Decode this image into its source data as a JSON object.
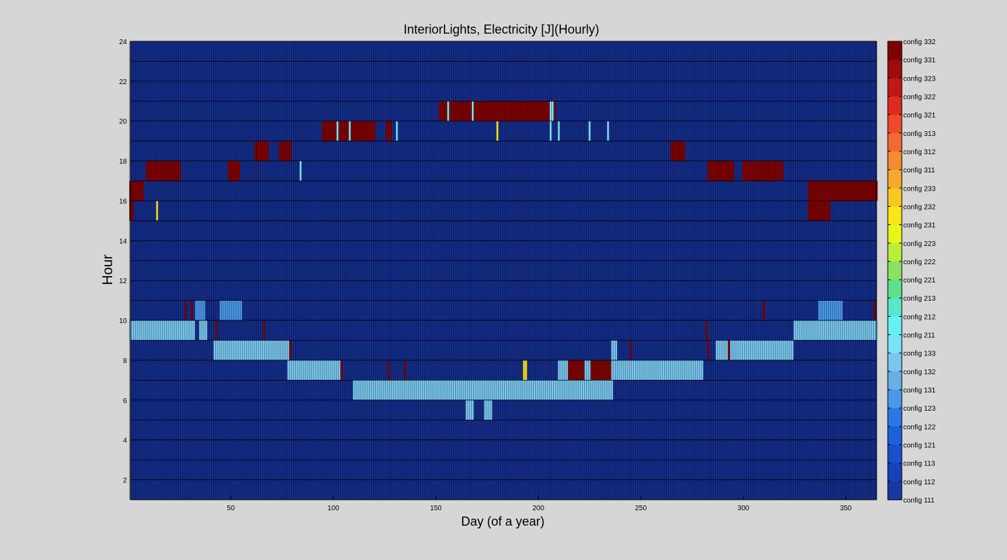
{
  "chart_data": {
    "type": "heatmap",
    "title": "InteriorLights, Electricity [J](Hourly)",
    "xlabel": "Day (of a year)",
    "ylabel": "Hour",
    "xlim": [
      1,
      365
    ],
    "ylim": [
      1,
      24
    ],
    "xticks": [
      50,
      100,
      150,
      200,
      250,
      300,
      350
    ],
    "yticks": [
      2,
      4,
      6,
      8,
      10,
      12,
      14,
      16,
      18,
      20,
      22,
      24
    ],
    "grid": true,
    "colorbar": {
      "position": "right",
      "labels": [
        "config 332",
        "config 331",
        "config 323",
        "config 322",
        "config 321",
        "config 313",
        "config 312",
        "config 311",
        "config 233",
        "config 232",
        "config 231",
        "config 223",
        "config 222",
        "config 221",
        "config 213",
        "config 212",
        "config 211",
        "config 133",
        "config 132",
        "config 131",
        "config 123",
        "config 122",
        "config 121",
        "config 113",
        "config 112",
        "config 111"
      ],
      "colors": [
        "#7f0000",
        "#a00a0a",
        "#c01818",
        "#dd2a20",
        "#ef4a2a",
        "#f26a30",
        "#f48a32",
        "#f7a830",
        "#f9c820",
        "#f8e818",
        "#e6f51a",
        "#b8ee3a",
        "#88e460",
        "#5ee08c",
        "#56e8c8",
        "#66f2f2",
        "#7be2f8",
        "#79c6ee",
        "#6aaee6",
        "#4a98e8",
        "#2a78e8",
        "#1e60dc",
        "#1a4fcc",
        "#1840b8",
        "#1838a6",
        "#142d8a"
      ]
    },
    "background_level": "config 111",
    "bands": [
      {
        "hour": 21,
        "level": "config 332",
        "day_ranges": [
          [
            152,
            205
          ]
        ],
        "spot_days": [
          [
            156,
            "config 211"
          ],
          [
            168,
            "config 211"
          ],
          [
            206,
            "config 211"
          ],
          [
            207,
            "config 211"
          ],
          [
            208,
            "config 332"
          ]
        ]
      },
      {
        "hour": 20,
        "level": "config 332",
        "day_ranges": [
          [
            95,
            120
          ],
          [
            126,
            128
          ]
        ],
        "spot_days": [
          [
            102,
            "config 211"
          ],
          [
            108,
            "config 211"
          ],
          [
            131,
            "config 211"
          ],
          [
            180,
            "config 232"
          ],
          [
            206,
            "config 211"
          ],
          [
            210,
            "config 211"
          ],
          [
            225,
            "config 211"
          ],
          [
            234,
            "config 211"
          ]
        ]
      },
      {
        "hour": 19,
        "level": "config 332",
        "day_ranges": [
          [
            62,
            68
          ],
          [
            74,
            79
          ],
          [
            265,
            271
          ]
        ],
        "spot_days": []
      },
      {
        "hour": 18,
        "level": "config 332",
        "day_ranges": [
          [
            9,
            25
          ],
          [
            49,
            54
          ],
          [
            283,
            295
          ],
          [
            300,
            319
          ]
        ],
        "spot_days": [
          [
            84,
            "config 211"
          ]
        ]
      },
      {
        "hour": 17,
        "level": "config 332",
        "day_ranges": [
          [
            1,
            7
          ],
          [
            332,
            365
          ]
        ],
        "spot_days": []
      },
      {
        "hour": 16,
        "level": "config 332",
        "day_ranges": [
          [
            1,
            2
          ],
          [
            332,
            342
          ]
        ],
        "spot_days": [
          [
            14,
            "config 232"
          ]
        ]
      },
      {
        "hour": 11,
        "level": "config 131",
        "day_ranges": [
          [
            33,
            37
          ],
          [
            45,
            55
          ],
          [
            337,
            348
          ]
        ],
        "spot_days": [
          [
            28,
            "config 332"
          ],
          [
            31,
            "config 332"
          ],
          [
            310,
            "config 332"
          ],
          [
            364,
            "config 332"
          ]
        ]
      },
      {
        "hour": 10,
        "level": "config 133",
        "day_ranges": [
          [
            1,
            32
          ],
          [
            35,
            38
          ],
          [
            325,
            365
          ]
        ],
        "spot_days": [
          [
            43,
            "config 332"
          ],
          [
            66,
            "config 332"
          ],
          [
            282,
            "config 332"
          ]
        ]
      },
      {
        "hour": 9,
        "level": "config 133",
        "day_ranges": [
          [
            42,
            78
          ],
          [
            236,
            238
          ],
          [
            287,
            324
          ]
        ],
        "spot_days": [
          [
            79,
            "config 332"
          ],
          [
            245,
            "config 332"
          ],
          [
            283,
            "config 332"
          ],
          [
            293,
            "config 332"
          ]
        ]
      },
      {
        "hour": 8,
        "level": "config 133",
        "day_ranges": [
          [
            78,
            103
          ],
          [
            210,
            238
          ],
          [
            239,
            280
          ]
        ],
        "spot_days": [
          [
            104,
            "config 332"
          ],
          [
            127,
            "config 332"
          ],
          [
            135,
            "config 332"
          ],
          [
            193,
            "config 232"
          ],
          [
            194,
            "config 232"
          ],
          [
            215,
            "config 332"
          ],
          [
            216,
            "config 332"
          ],
          [
            217,
            "config 332"
          ],
          [
            218,
            "config 332"
          ],
          [
            219,
            "config 332"
          ],
          [
            220,
            "config 332"
          ],
          [
            221,
            "config 332"
          ],
          [
            222,
            "config 332"
          ],
          [
            226,
            "config 332"
          ],
          [
            227,
            "config 332"
          ],
          [
            228,
            "config 332"
          ],
          [
            229,
            "config 332"
          ],
          [
            230,
            "config 332"
          ],
          [
            231,
            "config 332"
          ],
          [
            232,
            "config 332"
          ],
          [
            233,
            "config 332"
          ],
          [
            234,
            "config 332"
          ],
          [
            235,
            "config 332"
          ]
        ]
      },
      {
        "hour": 7,
        "level": "config 133",
        "day_ranges": [
          [
            110,
            236
          ]
        ],
        "spot_days": []
      },
      {
        "hour": 6,
        "level": "config 133",
        "day_ranges": [
          [
            165,
            168
          ],
          [
            174,
            177
          ]
        ],
        "spot_days": []
      }
    ]
  }
}
